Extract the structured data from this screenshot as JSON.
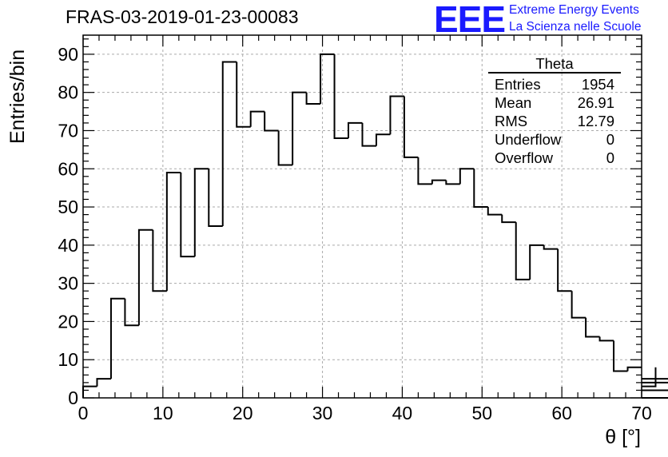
{
  "title": "FRAS-03-2019-01-23-00083",
  "logo": {
    "mark": "EEE",
    "line1": "Extreme Energy Events",
    "line2": "La Scienza nelle Scuole"
  },
  "colors": {
    "logo": "#1a1aff",
    "line": "#000000",
    "grid": "#aaaaaa"
  },
  "stats": {
    "title": "Theta",
    "rows": [
      {
        "label": "Entries",
        "value": "1954"
      },
      {
        "label": "Mean",
        "value": "26.91"
      },
      {
        "label": "RMS",
        "value": "12.79"
      },
      {
        "label": "Underflow",
        "value": "0"
      },
      {
        "label": "Overflow",
        "value": "0"
      }
    ]
  },
  "chart_data": {
    "type": "histogram",
    "xlabel": "θ [°]",
    "ylabel": "Entries/bin",
    "xlim": [
      0,
      70
    ],
    "ylim": [
      0,
      95
    ],
    "bin_width": 1.75,
    "x_ticks": [
      0,
      10,
      20,
      30,
      40,
      50,
      60,
      70
    ],
    "y_ticks": [
      0,
      10,
      20,
      30,
      40,
      50,
      60,
      70,
      80,
      90
    ],
    "grid": true,
    "values": [
      3,
      5,
      26,
      19,
      44,
      28,
      59,
      37,
      60,
      45,
      88,
      71,
      75,
      70,
      61,
      80,
      77,
      90,
      68,
      72,
      66,
      69,
      79,
      63,
      56,
      57,
      56,
      60,
      50,
      48,
      46,
      31,
      40,
      39,
      28,
      21,
      16,
      15,
      7,
      8,
      8,
      3,
      5,
      4,
      2,
      0
    ]
  }
}
